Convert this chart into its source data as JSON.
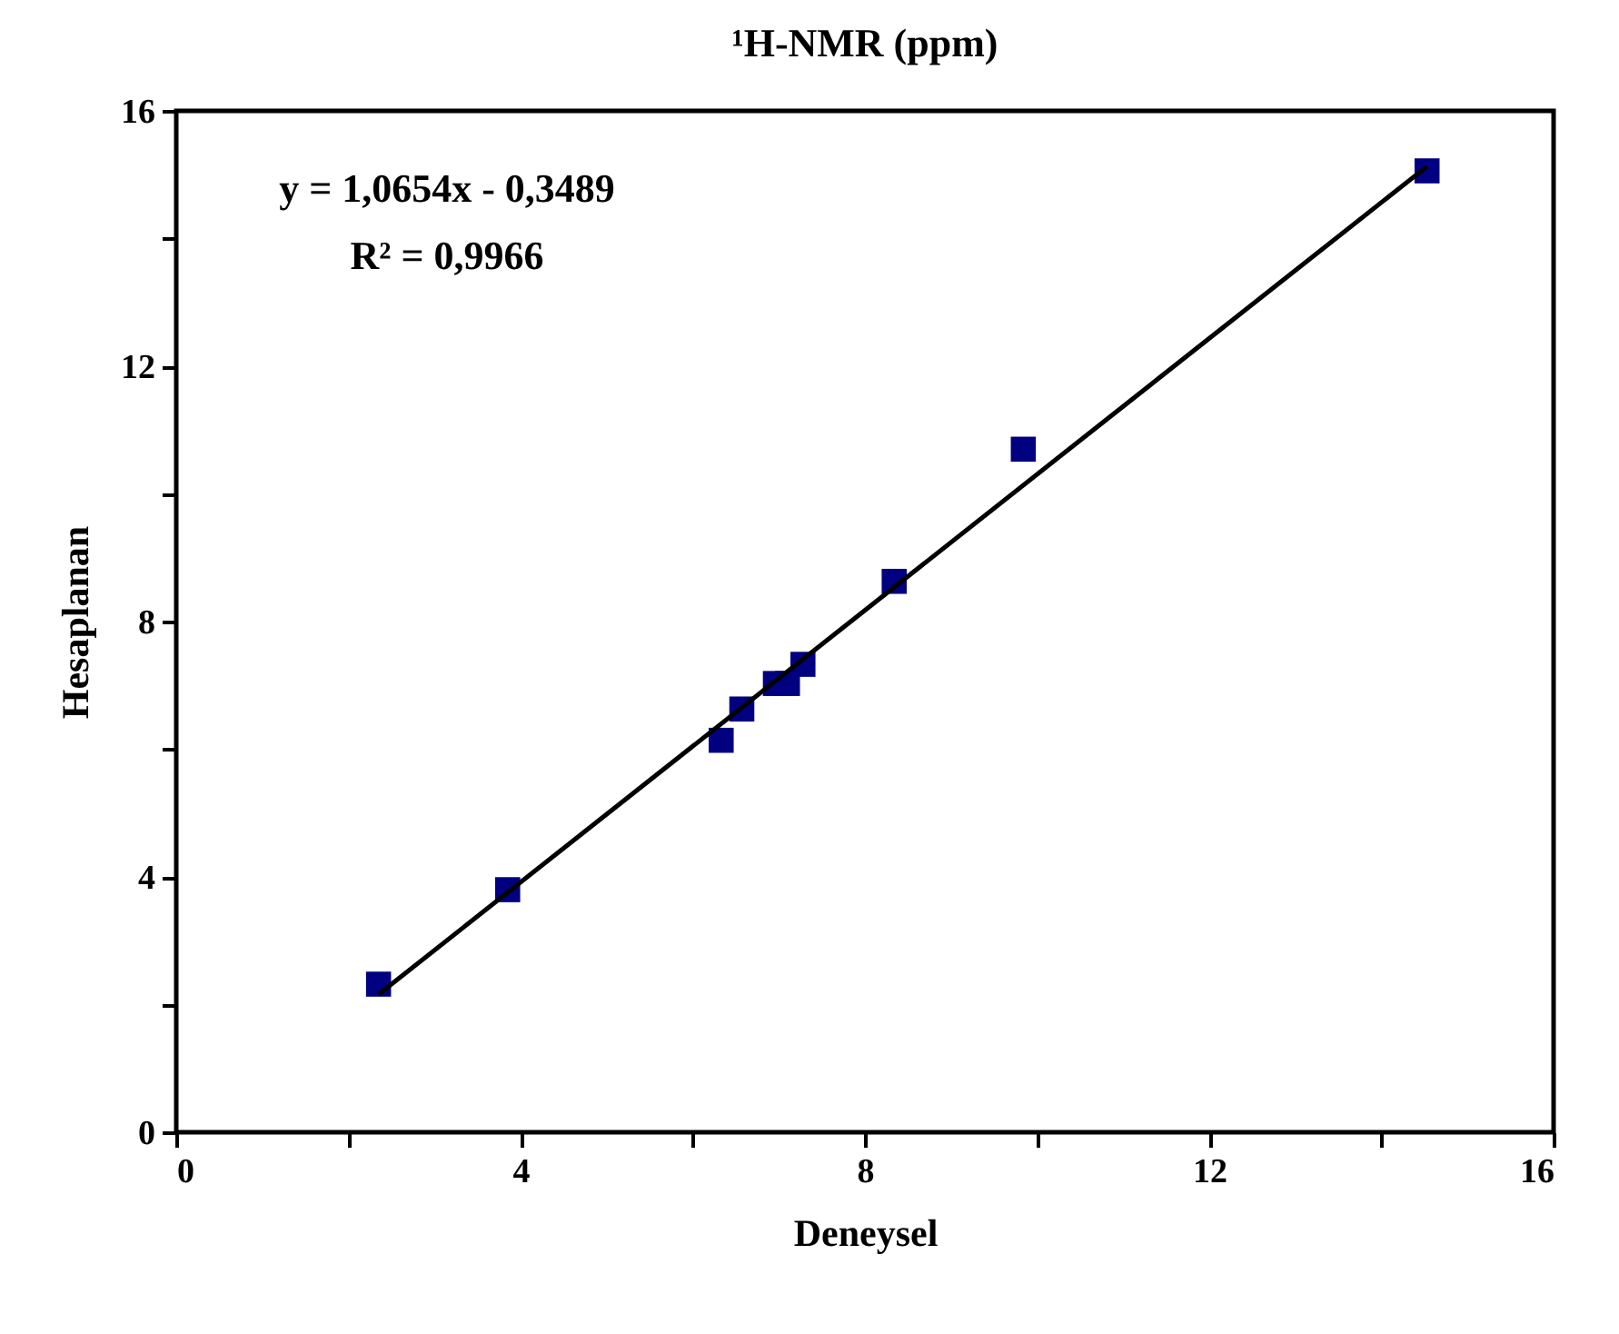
{
  "chart_data": {
    "type": "scatter",
    "title": "¹H-NMR (ppm)",
    "xlabel": "Deneysel",
    "ylabel": "Hesaplanan",
    "annotations": [
      "y = 1,0654x - 0,3489",
      "R² = 0,9966"
    ],
    "xlim": [
      0,
      16
    ],
    "ylim": [
      0,
      16
    ],
    "xticks": [
      0,
      {
        "value": 2,
        "label": null
      },
      4,
      {
        "value": 6,
        "label": null
      },
      8,
      {
        "value": 10,
        "label": null
      },
      12,
      {
        "value": 14,
        "label": null
      },
      16
    ],
    "yticks": [
      0,
      {
        "value": 2,
        "label": null
      },
      4,
      {
        "value": 6,
        "label": null
      },
      8,
      {
        "value": 10,
        "label": null
      },
      12,
      {
        "value": 14,
        "label": null
      },
      16
    ],
    "marker": "square",
    "series": [
      {
        "color": "#000080",
        "x": [
          2.35,
          3.85,
          6.33,
          6.57,
          6.96,
          7.1,
          7.28,
          8.34,
          9.84,
          14.53
        ],
        "values": [
          2.32,
          3.8,
          6.14,
          6.63,
          7.03,
          7.03,
          7.33,
          8.63,
          10.7,
          15.06
        ]
      },
      {
        "type": "line",
        "marker": "none",
        "color": "#000000",
        "x": [
          2.35,
          14.53
        ],
        "values": [
          2.16,
          15.13
        ]
      }
    ]
  }
}
